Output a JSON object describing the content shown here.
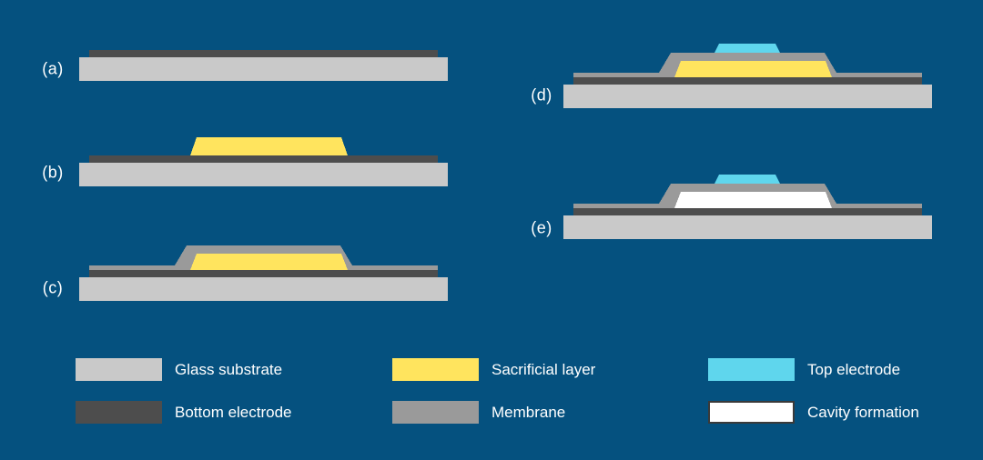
{
  "colors": {
    "background": "#05517F",
    "text": "#FFFFFF",
    "glass_substrate": "#C9C9C9",
    "bottom_electrode": "#4D4D4D",
    "sacrificial_layer": "#FFE45E",
    "membrane": "#9A9A9A",
    "top_electrode": "#5FD6ED",
    "cavity": "#FFFFFF",
    "cavity_border": "#3A3A3A"
  },
  "steps": [
    {
      "id": "a",
      "label": "(a)",
      "layers": [
        "glass_substrate",
        "bottom_electrode"
      ]
    },
    {
      "id": "b",
      "label": "(b)",
      "layers": [
        "glass_substrate",
        "bottom_electrode",
        "sacrificial_layer"
      ]
    },
    {
      "id": "c",
      "label": "(c)",
      "layers": [
        "glass_substrate",
        "bottom_electrode",
        "sacrificial_layer",
        "membrane"
      ]
    },
    {
      "id": "d",
      "label": "(d)",
      "layers": [
        "glass_substrate",
        "bottom_electrode",
        "sacrificial_layer",
        "membrane",
        "top_electrode"
      ]
    },
    {
      "id": "e",
      "label": "(e)",
      "layers": [
        "glass_substrate",
        "bottom_electrode",
        "cavity",
        "membrane",
        "top_electrode"
      ]
    }
  ],
  "legend": {
    "items": [
      {
        "label": "Glass substrate",
        "color_key": "glass_substrate",
        "border": false
      },
      {
        "label": "Bottom electrode",
        "color_key": "bottom_electrode",
        "border": false
      },
      {
        "label": "Sacrificial layer",
        "color_key": "sacrificial_layer",
        "border": false
      },
      {
        "label": "Membrane",
        "color_key": "membrane",
        "border": false
      },
      {
        "label": "Top electrode",
        "color_key": "top_electrode",
        "border": false
      },
      {
        "label": "Cavity formation",
        "color_key": "cavity",
        "border": true
      }
    ]
  }
}
